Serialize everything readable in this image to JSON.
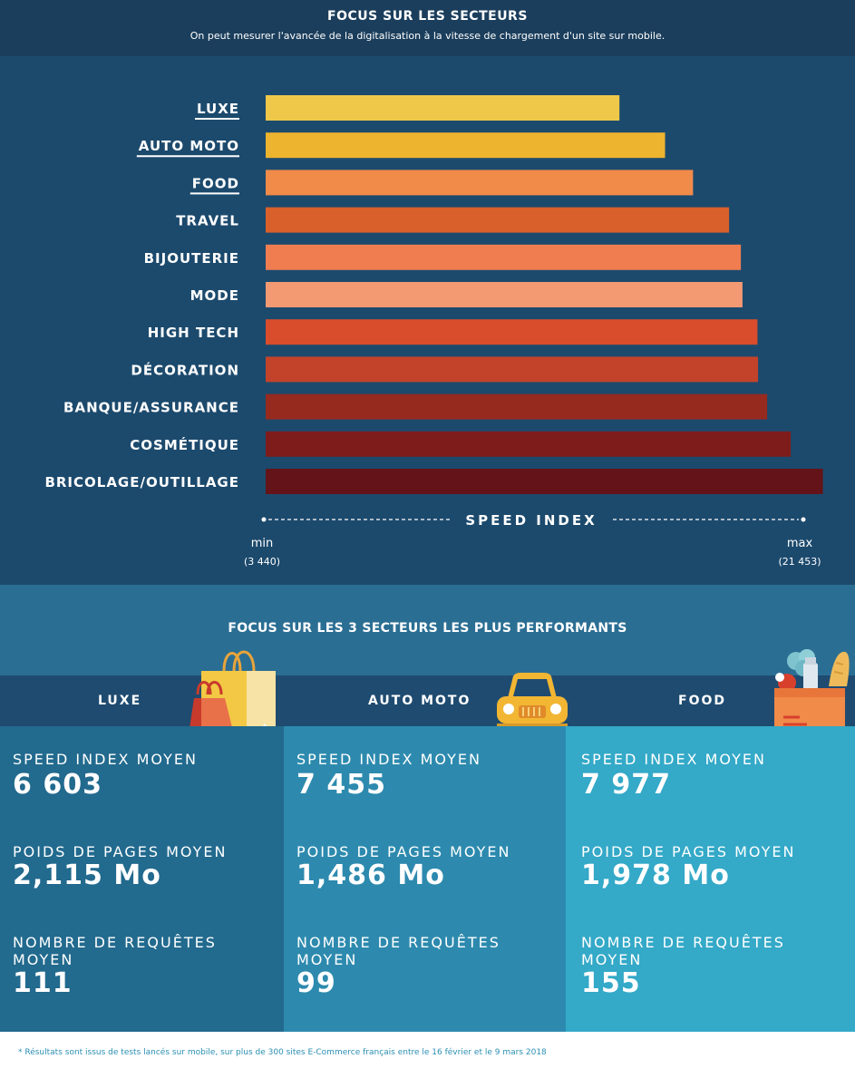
{
  "header": {
    "title": "FOCUS SUR LES SECTEURS",
    "subtitle": "On peut mesurer l'avancée de la digitalisation à la vitesse de chargement d'un site sur mobile."
  },
  "chart_data": {
    "type": "bar",
    "orientation": "horizontal",
    "categories": [
      "LUXE",
      "AUTO MOTO",
      "FOOD",
      "TRAVEL",
      "BIJOUTERIE",
      "MODE",
      "HIGH TECH",
      "DÉCORATION",
      "BANQUE/ASSURANCE",
      "COSMÉTIQUE",
      "BRICOLAGE/OUTILLAGE"
    ],
    "underlined_categories": [
      "LUXE",
      "AUTO MOTO",
      "FOOD"
    ],
    "values": [
      6603,
      7455,
      7977,
      8650,
      8870,
      8900,
      9180,
      9190,
      9360,
      9800,
      10400
    ],
    "colors": [
      "#efc84a",
      "#edb42f",
      "#f08b4a",
      "#d95f2b",
      "#ef7d50",
      "#f39a73",
      "#d94c2c",
      "#c2432a",
      "#962a1f",
      "#7e1c1c",
      "#641418"
    ],
    "axis_label": "SPEED INDEX",
    "min_label": "min",
    "min_value": "(3 440)",
    "max_label": "max",
    "max_value": "(21 453)",
    "xlim": [
      0,
      11000
    ]
  },
  "performance": {
    "title": "FOCUS SUR LES 3 SECTEURS LES PLUS PERFORMANTS",
    "metric_labels": {
      "speed": "SPEED INDEX MOYEN",
      "weight": "POIDS DE PAGES MOYEN",
      "requests": "NOMBRE DE REQUÊTES MOYEN"
    },
    "sectors": [
      {
        "name": "LUXE",
        "icon": "shopping-bags-icon",
        "speed": "6 603",
        "weight": "2,115 Mo",
        "requests": "111",
        "color": "#226a8e"
      },
      {
        "name": "AUTO MOTO",
        "icon": "car-icon",
        "speed": "7 455",
        "weight": "1,486 Mo",
        "requests": "99",
        "color": "#2d8aae"
      },
      {
        "name": "FOOD",
        "icon": "grocery-bag-icon",
        "speed": "7 977",
        "weight": "1,978 Mo",
        "requests": "155",
        "color": "#34a9c8"
      }
    ]
  },
  "footnote": "* Résultats sont issus de tests lancés sur mobile, sur plus de 300 sites E-Commerce français entre le 16 février et le 9 mars 2018"
}
